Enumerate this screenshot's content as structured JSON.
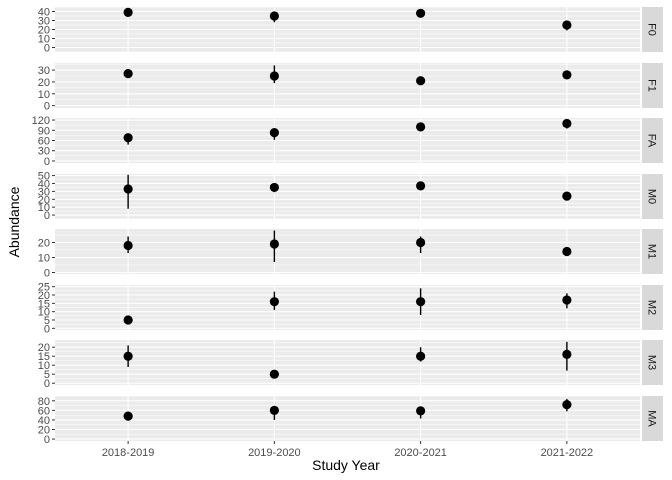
{
  "chart_data": {
    "type": "scatter",
    "xlabel": "Study Year",
    "ylabel": "Abundance",
    "categories": [
      "2018-2019",
      "2019-2020",
      "2020-2021",
      "2021-2022"
    ],
    "grid": true,
    "facet_layout": "vertical, strip labels on right",
    "colors": {
      "panel_bg": "#EBEBEB",
      "grid": "#FFFFFF",
      "strip_bg": "#D9D9D9",
      "point": "#000000"
    },
    "panels": [
      {
        "label": "F0",
        "ylim": [
          -5,
          45
        ],
        "ticks": [
          0,
          10,
          20,
          30,
          40
        ],
        "points": [
          {
            "x": "2018-2019",
            "y": 39,
            "lo": 39,
            "hi": 39
          },
          {
            "x": "2019-2020",
            "y": 35,
            "lo": 28,
            "hi": 37
          },
          {
            "x": "2020-2021",
            "y": 38,
            "lo": 38,
            "hi": 38
          },
          {
            "x": "2021-2022",
            "y": 25,
            "lo": 19,
            "hi": 28
          }
        ]
      },
      {
        "label": "F1",
        "ylim": [
          -2,
          36
        ],
        "ticks": [
          0,
          10,
          20,
          30
        ],
        "points": [
          {
            "x": "2018-2019",
            "y": 27,
            "lo": 27,
            "hi": 27
          },
          {
            "x": "2019-2020",
            "y": 25,
            "lo": 19,
            "hi": 34
          },
          {
            "x": "2020-2021",
            "y": 21,
            "lo": 21,
            "hi": 21
          },
          {
            "x": "2021-2022",
            "y": 26,
            "lo": 26,
            "hi": 26
          }
        ]
      },
      {
        "label": "FA",
        "ylim": [
          -6,
          126
        ],
        "ticks": [
          0,
          30,
          60,
          90,
          120
        ],
        "points": [
          {
            "x": "2018-2019",
            "y": 68,
            "lo": 48,
            "hi": 72
          },
          {
            "x": "2019-2020",
            "y": 83,
            "lo": 62,
            "hi": 90
          },
          {
            "x": "2020-2021",
            "y": 100,
            "lo": 87,
            "hi": 106
          },
          {
            "x": "2021-2022",
            "y": 110,
            "lo": 95,
            "hi": 118
          }
        ]
      },
      {
        "label": "M0",
        "ylim": [
          -5,
          52
        ],
        "ticks": [
          0,
          10,
          20,
          30,
          40,
          50
        ],
        "points": [
          {
            "x": "2018-2019",
            "y": 33,
            "lo": 8,
            "hi": 51
          },
          {
            "x": "2019-2020",
            "y": 35,
            "lo": 29,
            "hi": 39
          },
          {
            "x": "2020-2021",
            "y": 37,
            "lo": 37,
            "hi": 37
          },
          {
            "x": "2021-2022",
            "y": 24,
            "lo": 20,
            "hi": 26
          }
        ]
      },
      {
        "label": "M1",
        "ylim": [
          -1,
          29
        ],
        "ticks": [
          0,
          10,
          20
        ],
        "points": [
          {
            "x": "2018-2019",
            "y": 18,
            "lo": 13,
            "hi": 24
          },
          {
            "x": "2019-2020",
            "y": 19,
            "lo": 7,
            "hi": 28
          },
          {
            "x": "2020-2021",
            "y": 20,
            "lo": 13,
            "hi": 24
          },
          {
            "x": "2021-2022",
            "y": 14,
            "lo": 14,
            "hi": 14
          }
        ]
      },
      {
        "label": "M2",
        "ylim": [
          -1,
          26
        ],
        "ticks": [
          0,
          5,
          10,
          15,
          20,
          25
        ],
        "points": [
          {
            "x": "2018-2019",
            "y": 5,
            "lo": 5,
            "hi": 5
          },
          {
            "x": "2019-2020",
            "y": 16,
            "lo": 11,
            "hi": 22
          },
          {
            "x": "2020-2021",
            "y": 16,
            "lo": 8,
            "hi": 24
          },
          {
            "x": "2021-2022",
            "y": 17,
            "lo": 12,
            "hi": 21
          }
        ]
      },
      {
        "label": "M3",
        "ylim": [
          -1,
          24
        ],
        "ticks": [
          0,
          5,
          10,
          15,
          20
        ],
        "points": [
          {
            "x": "2018-2019",
            "y": 15,
            "lo": 9,
            "hi": 21
          },
          {
            "x": "2019-2020",
            "y": 5,
            "lo": 5,
            "hi": 5
          },
          {
            "x": "2020-2021",
            "y": 15,
            "lo": 12,
            "hi": 20
          },
          {
            "x": "2021-2022",
            "y": 16,
            "lo": 7,
            "hi": 23
          }
        ]
      },
      {
        "label": "MA",
        "ylim": [
          -4,
          90
        ],
        "ticks": [
          0,
          20,
          40,
          60,
          80
        ],
        "points": [
          {
            "x": "2018-2019",
            "y": 48,
            "lo": 39,
            "hi": 52
          },
          {
            "x": "2019-2020",
            "y": 60,
            "lo": 40,
            "hi": 68
          },
          {
            "x": "2020-2021",
            "y": 59,
            "lo": 43,
            "hi": 68
          },
          {
            "x": "2021-2022",
            "y": 72,
            "lo": 58,
            "hi": 84
          }
        ]
      }
    ]
  }
}
